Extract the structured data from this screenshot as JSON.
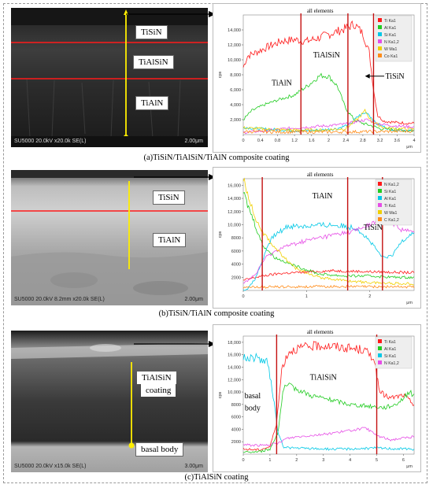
{
  "panels": [
    {
      "caption": "(a)TiSiN/TiAlSiN/TiAlN composite coating",
      "sem_info": "SU5000 20.0kV x20.0k SE(L)",
      "scale": "2.00μm",
      "labels": [
        "TiSiN",
        "TiAlSiN",
        "TiAlN"
      ],
      "chart_title": "all elements",
      "legend": [
        "Ti Ka1",
        "Al Ka1",
        "Si Ka1",
        "N Ka1,2",
        "W Ma1",
        "Co Ka1"
      ],
      "annotations": [
        "TiAlN",
        "TiAlSiN",
        "TiSiN"
      ]
    },
    {
      "caption": "(b)TiSiN/TiAlN composite coating",
      "sem_info": "SU5000 20.0kV 8.2mm x20.0k SE(L)",
      "scale": "2.00μm",
      "labels": [
        "TiSiN",
        "TiAlN"
      ],
      "chart_title": "all elements",
      "legend": [
        "N Ka1,2",
        "Si Ka1",
        "Al Ka1",
        "Ti Ka1",
        "W Ma1",
        "C Ka1,2"
      ],
      "annotations": [
        "TiAlN",
        "TiSiN"
      ]
    },
    {
      "caption": "(c)TiAlSiN coating",
      "sem_info": "SU5000 20.0kV x15.0k SE(L)",
      "scale": "3.00μm",
      "labels": [
        "TiAlSiN",
        "coating",
        "basal body"
      ],
      "chart_title": "all elements",
      "legend": [
        "Ti Ka1",
        "Al Ka1",
        "Si Ka1",
        "N Ka1,2"
      ],
      "annotations": [
        "TiAlSiN",
        "basal",
        "body"
      ]
    }
  ],
  "chart_data": [
    {
      "type": "line",
      "title": "all elements",
      "ylabel": "cps",
      "xlabel": "μm",
      "ylim": [
        0,
        16000
      ],
      "xlim": [
        0,
        4
      ],
      "x_ticks": [
        "0",
        "0.4",
        "0.8",
        "1.2",
        "1.6",
        "2",
        "2.4",
        "2.8",
        "3.2",
        "3.6",
        "4"
      ],
      "y_ticks": [
        "2,000",
        "4,000",
        "6,000",
        "8,000",
        "10,000",
        "12,000",
        "14,000"
      ],
      "boundaries": [
        1.35,
        2.45,
        3.05
      ],
      "series": [
        {
          "name": "Ti Ka1",
          "color": "#ff1a1a",
          "x": [
            0,
            0.1,
            0.3,
            0.6,
            0.9,
            1.2,
            1.5,
            1.8,
            2.1,
            2.4,
            2.6,
            2.8,
            2.95,
            3.05,
            3.15,
            3.3,
            3.6,
            4.0
          ],
          "y": [
            9000,
            10500,
            11000,
            11800,
            12500,
            12700,
            12500,
            13000,
            13600,
            14200,
            14800,
            13500,
            11000,
            6000,
            2500,
            1800,
            1600,
            1500
          ]
        },
        {
          "name": "Al Ka1",
          "color": "#22cc22",
          "x": [
            0,
            0.2,
            0.5,
            0.9,
            1.2,
            1.5,
            1.8,
            2.0,
            2.2,
            2.4,
            2.6,
            2.8,
            3.0,
            3.2,
            3.6,
            4.0
          ],
          "y": [
            2000,
            3200,
            4000,
            4800,
            5300,
            6500,
            7900,
            7800,
            6500,
            3500,
            2000,
            1500,
            1200,
            800,
            600,
            500
          ]
        },
        {
          "name": "Si Ka1",
          "color": "#00c8e6",
          "x": [
            0,
            0.3,
            0.6,
            1.0,
            1.4,
            1.8,
            2.2,
            2.5,
            2.7,
            2.9,
            3.1,
            3.4,
            4.0
          ],
          "y": [
            1000,
            800,
            700,
            600,
            500,
            600,
            800,
            1400,
            2500,
            3000,
            1500,
            800,
            500
          ]
        },
        {
          "name": "N Ka1,2",
          "color": "#e64de6",
          "x": [
            0,
            0.5,
            1.0,
            1.5,
            2.0,
            2.4,
            2.7,
            2.9,
            3.1,
            3.5,
            4.0
          ],
          "y": [
            300,
            500,
            800,
            1000,
            1200,
            1400,
            1800,
            2000,
            1500,
            1200,
            1000
          ]
        },
        {
          "name": "W Ma1",
          "color": "#f0d000",
          "x": [
            0,
            0.6,
            1.2,
            1.8,
            2.4,
            2.7,
            2.85,
            3.0,
            3.3,
            4.0
          ],
          "y": [
            900,
            700,
            600,
            600,
            800,
            2200,
            3200,
            1800,
            900,
            700
          ]
        },
        {
          "name": "Co Ka1",
          "color": "#ff8c1a",
          "x": [
            0,
            1,
            2,
            3,
            4
          ],
          "y": [
            400,
            350,
            350,
            400,
            450
          ]
        }
      ]
    },
    {
      "type": "line",
      "title": "all elements",
      "ylabel": "cps",
      "xlabel": "μm",
      "ylim": [
        0,
        17000
      ],
      "xlim": [
        0,
        2.7
      ],
      "x_ticks": [
        "0",
        "1",
        "2"
      ],
      "y_ticks": [
        "2000",
        "4000",
        "6000",
        "8000",
        "10,000",
        "12,000",
        "14,000",
        "16,000"
      ],
      "boundaries": [
        0.3,
        1.65,
        2.2
      ],
      "series": [
        {
          "name": "N Ka1,2",
          "color": "#ff1a1a",
          "x": [
            0,
            0.1,
            0.3,
            0.6,
            1.0,
            1.4,
            1.8,
            2.2,
            2.7
          ],
          "y": [
            1500,
            1800,
            2200,
            2600,
            2800,
            3000,
            2900,
            2800,
            2700
          ]
        },
        {
          "name": "Si Ka1",
          "color": "#22cc22",
          "x": [
            0,
            0.05,
            0.15,
            0.3,
            0.5,
            0.8,
            1.2,
            1.6,
            2.0,
            2.4,
            2.7
          ],
          "y": [
            15000,
            13500,
            11000,
            7000,
            5000,
            3800,
            2500,
            2200,
            2200,
            2000,
            2000
          ]
        },
        {
          "name": "Al Ka1",
          "color": "#00c8e6",
          "x": [
            0,
            0.1,
            0.2,
            0.3,
            0.45,
            0.7,
            1.0,
            1.4,
            1.8,
            2.0,
            2.2,
            2.35,
            2.5,
            2.7
          ],
          "y": [
            0,
            500,
            2000,
            4500,
            8000,
            9800,
            9800,
            10000,
            9500,
            7500,
            5000,
            5200,
            7500,
            9000
          ]
        },
        {
          "name": "Ti Ka1",
          "color": "#e64de6",
          "x": [
            0,
            0.2,
            0.35,
            0.6,
            1.0,
            1.4,
            1.8,
            2.1,
            2.3,
            2.5,
            2.7
          ],
          "y": [
            1000,
            2500,
            5000,
            6500,
            7600,
            8400,
            9200,
            10400,
            10800,
            9300,
            8800
          ]
        },
        {
          "name": "W Ma1",
          "color": "#f0d000",
          "x": [
            0,
            0.05,
            0.15,
            0.3,
            0.5,
            0.8,
            1.2,
            1.6,
            2.0,
            2.7
          ],
          "y": [
            17000,
            15500,
            12000,
            9000,
            6500,
            3500,
            2000,
            1500,
            1200,
            1000
          ]
        },
        {
          "name": "C Ka1,2",
          "color": "#ff8c1a",
          "x": [
            0,
            1.35,
            2.7
          ],
          "y": [
            500,
            600,
            550
          ]
        }
      ]
    },
    {
      "type": "line",
      "title": "all elements",
      "ylabel": "cps",
      "xlabel": "μm",
      "ylim": [
        0,
        19000
      ],
      "xlim": [
        0,
        6.4
      ],
      "x_ticks": [
        "0",
        "1",
        "2",
        "3",
        "4",
        "5",
        "6"
      ],
      "y_ticks": [
        "2000",
        "4000",
        "6000",
        "8000",
        "10,000",
        "12,000",
        "14,000",
        "16,000",
        "18,000"
      ],
      "boundaries": [
        1.25,
        5.0
      ],
      "series": [
        {
          "name": "Ti Ka1",
          "color": "#ff1a1a",
          "x": [
            0,
            0.6,
            1.0,
            1.25,
            1.45,
            1.7,
            2.0,
            2.5,
            3.0,
            3.5,
            4.0,
            4.5,
            4.9,
            5.1,
            5.5,
            6.0,
            6.4
          ],
          "y": [
            800,
            700,
            1200,
            5000,
            14000,
            16500,
            17000,
            17300,
            17500,
            17300,
            17000,
            16800,
            15500,
            10000,
            9000,
            9500,
            8000
          ]
        },
        {
          "name": "Al Ka1",
          "color": "#22cc22",
          "x": [
            0,
            0.6,
            1.0,
            1.3,
            1.5,
            1.7,
            2.0,
            2.5,
            3.0,
            3.5,
            4.0,
            4.5,
            5.0,
            5.3,
            5.7,
            6.0,
            6.2,
            6.4
          ],
          "y": [
            300,
            400,
            800,
            3500,
            10500,
            11000,
            10500,
            9500,
            9000,
            8500,
            8000,
            7800,
            7600,
            7500,
            8000,
            9000,
            10000,
            9500
          ]
        },
        {
          "name": "Si Ka1",
          "color": "#00c8e6",
          "x": [
            0,
            0.5,
            0.9,
            1.1,
            1.3,
            1.5,
            1.8,
            2.5,
            3.5,
            4.5,
            5.0,
            5.5,
            6.4
          ],
          "y": [
            15500,
            15500,
            14800,
            10000,
            3500,
            1200,
            1000,
            900,
            800,
            900,
            1000,
            900,
            800
          ]
        },
        {
          "name": "N Ka1,2",
          "color": "#e64de6",
          "x": [
            0,
            0.8,
            1.3,
            1.6,
            2.0,
            3.0,
            4.0,
            4.6,
            5.0,
            5.5,
            6.0,
            6.4
          ],
          "y": [
            1500,
            1400,
            1700,
            2500,
            2800,
            3200,
            3800,
            4200,
            3000,
            2300,
            2600,
            2800
          ]
        }
      ]
    }
  ]
}
